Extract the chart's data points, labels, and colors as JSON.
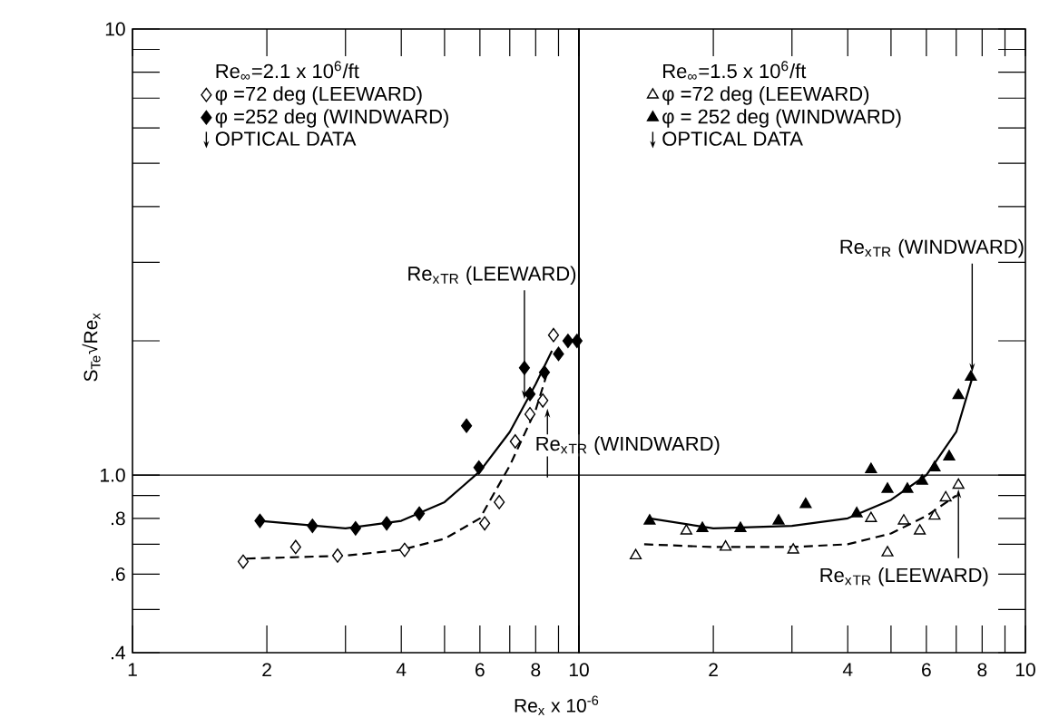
{
  "chart_data": [
    {
      "type": "scatter",
      "log": "xy",
      "ylabel": "S$_{Te}$√Re$_{x}$",
      "xlabel": "Re$_{x}$ x 10$^{-6}$",
      "legend": "top left",
      "legend_title": "Re$_{∞}$=2.1 x 10$^{6}$/ft",
      "xlim": [
        1,
        10
      ],
      "ylim": [
        0.4,
        10
      ],
      "xticks": [
        1,
        2,
        {
          "value": 3,
          "label": null
        },
        4,
        {
          "value": 5,
          "label": null
        },
        6,
        {
          "value": 7,
          "label": null
        },
        8,
        {
          "value": 9,
          "label": null
        },
        10
      ],
      "yticks": [
        {
          "value": 0.4,
          "label": ".4"
        },
        {
          "value": 0.5,
          "label": null
        },
        {
          "value": 0.6,
          "label": ".6"
        },
        {
          "value": 0.7,
          "label": null
        },
        {
          "value": 0.8,
          "label": ".8"
        },
        {
          "value": 0.9,
          "label": null
        },
        {
          "value": 1,
          "label": "1.0"
        },
        {
          "value": 2,
          "label": null
        },
        {
          "value": 3,
          "label": null
        },
        {
          "value": 4,
          "label": null
        },
        {
          "value": 5,
          "label": null
        },
        {
          "value": 6,
          "label": null
        },
        {
          "value": 7,
          "label": null
        },
        {
          "value": 8,
          "label": null
        },
        {
          "value": 9,
          "label": null
        },
        10
      ],
      "ref_lines": [
        {
          "axis": "y",
          "value": 1
        }
      ],
      "annotations": [
        "OPTICAL DATA",
        {
          "text": "Re$_{x}$$_{TR}$ (LEEWARD)",
          "x": 7.55,
          "y": 1.48
        },
        {
          "text": "Re$_{x}$$_{TR}$ (WINDWARD)",
          "x": 8.5,
          "y": 1.41
        }
      ],
      "series": [
        {
          "name": "φ =72 deg (LEEWARD)",
          "color": "#ffffff",
          "marker": "diamond",
          "x": [
            1.77,
            2.32,
            2.88,
            4.07,
            6.15,
            6.63,
            7.2,
            7.77,
            8.3,
            8.77
          ],
          "values": [
            0.64,
            0.69,
            0.66,
            0.68,
            0.78,
            0.87,
            1.19,
            1.37,
            1.47,
            2.06
          ]
        },
        {
          "name": "φ =252 deg (WINDWARD)",
          "color": "#000000",
          "marker": "diamond",
          "x": [
            1.93,
            2.53,
            3.16,
            3.71,
            4.39,
            5.97,
            5.6,
            7.77,
            7.55,
            8.37,
            9.0,
            9.45,
            9.9
          ],
          "values": [
            0.79,
            0.77,
            0.76,
            0.78,
            0.82,
            1.04,
            1.29,
            1.52,
            1.74,
            1.7,
            1.87,
            2.0,
            2.0
          ]
        },
        {
          "type": "line",
          "color": "#000000",
          "marker": "none",
          "line_style": "solid",
          "x": [
            1.93,
            3,
            4,
            5,
            6,
            7,
            8,
            8.7
          ],
          "values": [
            0.79,
            0.76,
            0.79,
            0.87,
            1.02,
            1.25,
            1.6,
            1.9
          ]
        },
        {
          "type": "line",
          "color": "#000000",
          "marker": "none",
          "line_style": "dashed",
          "x": [
            1.8,
            3,
            4,
            5,
            6,
            7,
            8,
            8.5
          ],
          "values": [
            0.65,
            0.66,
            0.68,
            0.72,
            0.8,
            1.05,
            1.4,
            1.7
          ]
        }
      ]
    },
    {
      "type": "scatter",
      "log": "xy",
      "legend": "top left",
      "legend_title": "Re$_{∞}$=1.5 x 10$^{6}$/ft",
      "tick_labels": "x",
      "xlim": [
        1,
        10
      ],
      "ylim": [
        0.4,
        10
      ],
      "xticks": [
        {
          "value": 1,
          "label": null
        },
        2,
        {
          "value": 3,
          "label": null
        },
        4,
        {
          "value": 5,
          "label": null
        },
        6,
        {
          "value": 7,
          "label": null
        },
        8,
        {
          "value": 9,
          "label": null
        },
        10
      ],
      "yticks": [
        0.4,
        0.5,
        0.6,
        0.7,
        0.8,
        0.9,
        1,
        2,
        3,
        4,
        5,
        6,
        7,
        8,
        9,
        10
      ],
      "ref_lines": [
        {
          "axis": "y",
          "value": 1
        }
      ],
      "annotations": [
        "OPTICAL DATA",
        {
          "text": "Re$_{x}$$_{TR}$ (WINDWARD)",
          "x": 7.6,
          "y": 1.7
        },
        {
          "text": "Re$_{x}$$_{TR}$ (LEEWARD)",
          "x": 7.08,
          "y": 0.93
        }
      ],
      "series": [
        {
          "name": "φ =72 deg (LEEWARD)",
          "color": "#ffffff",
          "marker": "triangle",
          "x": [
            1.34,
            1.74,
            2.13,
            3.02,
            4.51,
            4.91,
            5.34,
            5.8,
            6.26,
            6.63,
            7.08
          ],
          "values": [
            0.66,
            0.75,
            0.69,
            0.68,
            0.8,
            0.67,
            0.79,
            0.75,
            0.81,
            0.89,
            0.95
          ]
        },
        {
          "name": "φ = 252 deg (WINDWARD)",
          "color": "#000000",
          "marker": "triangle",
          "x": [
            1.44,
            1.89,
            2.3,
            2.8,
            3.22,
            4.19,
            4.51,
            4.91,
            5.44,
            5.87,
            6.26,
            6.75,
            7.08,
            7.55
          ],
          "values": [
            0.79,
            0.76,
            0.76,
            0.79,
            0.86,
            0.82,
            1.03,
            0.93,
            0.93,
            0.97,
            1.04,
            1.1,
            1.51,
            1.66
          ]
        },
        {
          "type": "line",
          "color": "#000000",
          "marker": "none",
          "line_style": "solid",
          "x": [
            1.44,
            2,
            3,
            4,
            5,
            6,
            7,
            7.6
          ],
          "values": [
            0.8,
            0.76,
            0.77,
            0.8,
            0.88,
            1.0,
            1.25,
            1.65
          ]
        },
        {
          "type": "line",
          "color": "#000000",
          "marker": "none",
          "line_style": "dashed",
          "x": [
            1.4,
            2,
            3,
            4,
            5,
            6,
            7
          ],
          "values": [
            0.7,
            0.69,
            0.69,
            0.7,
            0.74,
            0.81,
            0.9
          ]
        }
      ]
    }
  ]
}
